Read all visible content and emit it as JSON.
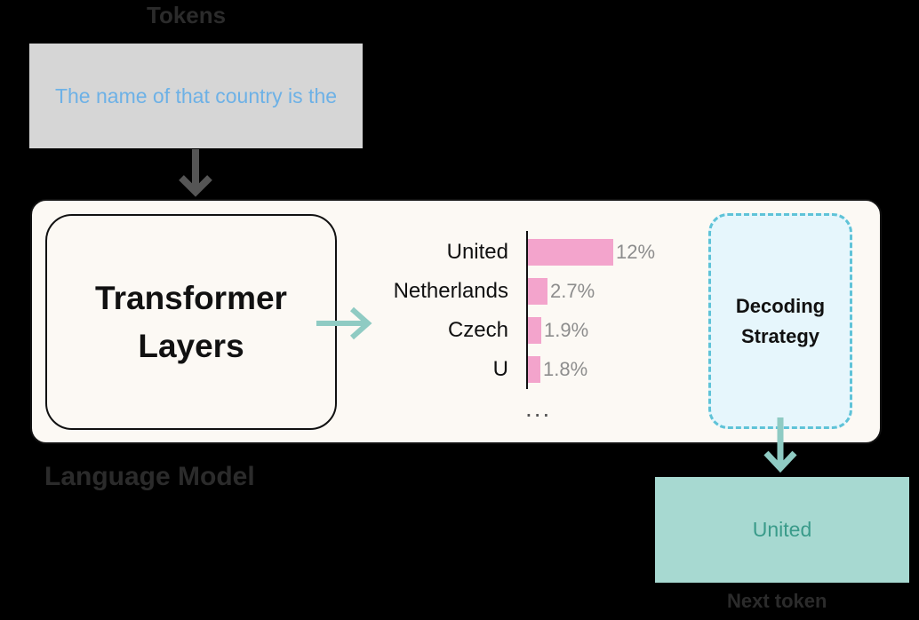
{
  "labels": {
    "input_caption": "Tokens",
    "model_caption": "Language Model",
    "output_caption": "Next token"
  },
  "input": {
    "text": "The name of that country is the"
  },
  "model": {
    "transformer_line1": "Transformer",
    "transformer_line2": "Layers"
  },
  "chart_data": {
    "type": "bar",
    "orientation": "horizontal",
    "categories": [
      "United",
      "Netherlands",
      "Czech",
      "U"
    ],
    "values": [
      12,
      2.7,
      1.9,
      1.8
    ],
    "value_labels": [
      "12%",
      "2.7%",
      "1.9%",
      "1.8%"
    ],
    "more_indicator": "...",
    "bar_color": "#f3a4cc"
  },
  "decoding": {
    "line1": "Decoding",
    "line2": "Strategy"
  },
  "output": {
    "text": "United"
  },
  "colors": {
    "input_box": "#d6d6d6",
    "input_text": "#6db1e6",
    "panel": "#fcf9f4",
    "arrow": "#8fcbc3",
    "decoding_border": "#5fc3d8",
    "output_box": "#a7d9d1",
    "output_text": "#3a9b8a"
  }
}
